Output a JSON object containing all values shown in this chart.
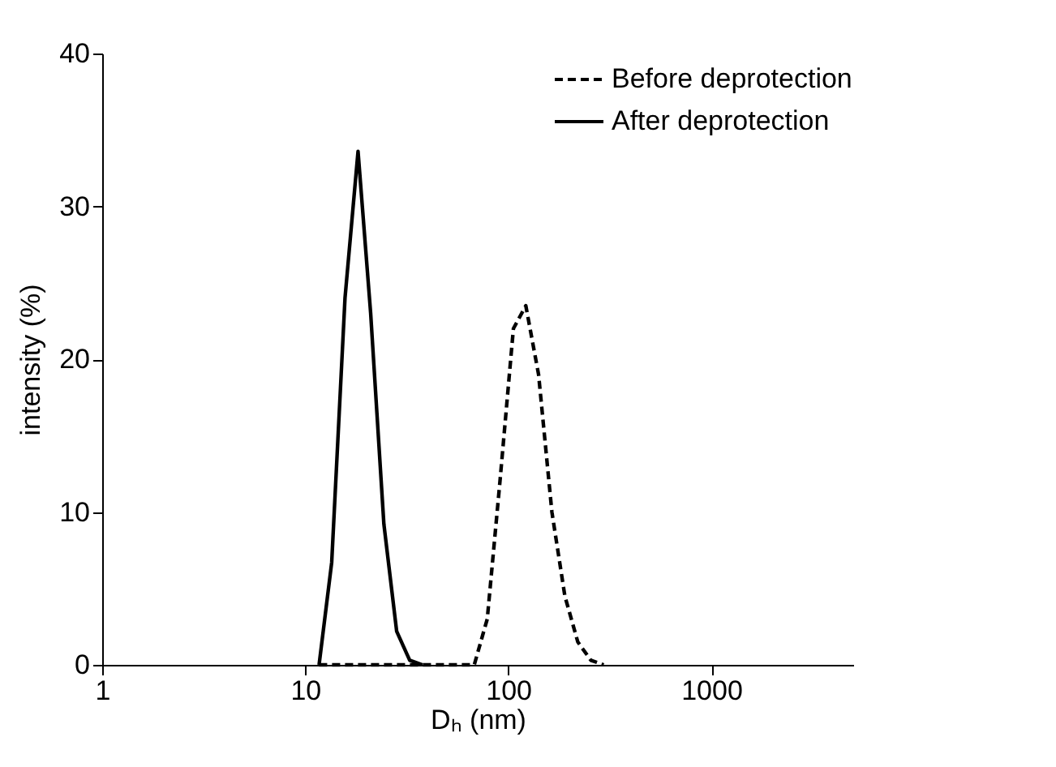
{
  "chart_data": {
    "type": "line",
    "xlabel": "Dₕ (nm)",
    "ylabel": "intensity (%)",
    "log": "x",
    "xlim": [
      1,
      5000
    ],
    "xticks": [
      1,
      10,
      100,
      1000
    ],
    "ylim": [
      0,
      40
    ],
    "yticks": [
      0,
      10,
      20,
      30,
      40
    ],
    "grid": false,
    "legend": "top right",
    "marker": "none",
    "series": [
      {
        "name": "Before deprotection",
        "color": "#000000",
        "line_style": "dashed",
        "x": [
          11.7,
          20,
          40,
          68,
          78.8,
          91,
          106,
          122,
          141,
          164,
          190,
          220,
          255,
          295
        ],
        "values": [
          0,
          0,
          0,
          0,
          3,
          12,
          22,
          23.5,
          19,
          10,
          4.5,
          1.5,
          0.3,
          0
        ]
      },
      {
        "name": "After deprotection",
        "color": "#000000",
        "line_style": "solid",
        "x": [
          11.7,
          13.5,
          15.7,
          18.2,
          21,
          24.4,
          28.2,
          32.7,
          37.8
        ],
        "values": [
          0,
          6.7,
          24,
          33.6,
          23,
          9.2,
          2.2,
          0.3,
          0
        ]
      }
    ]
  }
}
